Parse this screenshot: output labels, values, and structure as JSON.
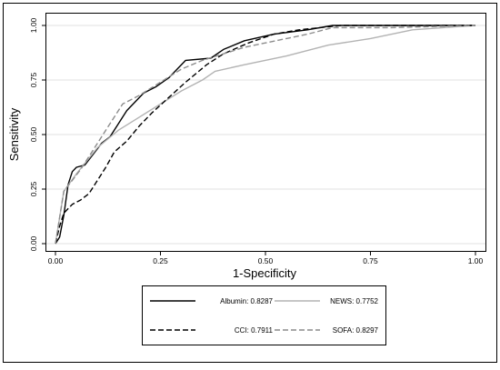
{
  "chart_data": {
    "type": "line",
    "title": "",
    "xlabel": "1-Specificity",
    "ylabel": "Sensitivity",
    "xlim": [
      0,
      1
    ],
    "ylim": [
      0,
      1
    ],
    "xticks": [
      "0.00",
      "0.25",
      "0.50",
      "0.75",
      "1.00"
    ],
    "yticks": [
      "0.00",
      "0.25",
      "0.50",
      "0.75",
      "1.00"
    ],
    "grid": "horizontal",
    "legend_position": "bottom",
    "legend": [
      {
        "label": "Albumin: 0.8287",
        "color": "#000000",
        "dash": "solid"
      },
      {
        "label": "NEWS: 0.7752",
        "color": "#b3b3b3",
        "dash": "solid"
      },
      {
        "label": "CCI: 0.7911",
        "color": "#000000",
        "dash": "dashed"
      },
      {
        "label": "SOFA: 0.8297",
        "color": "#8c8c8c",
        "dash": "dashed"
      }
    ],
    "series": [
      {
        "name": "Albumin: 0.8287",
        "x": [
          0,
          0.01,
          0.02,
          0.03,
          0.04,
          0.05,
          0.07,
          0.09,
          0.11,
          0.13,
          0.15,
          0.17,
          0.21,
          0.24,
          0.27,
          0.31,
          0.37,
          0.4,
          0.45,
          0.52,
          0.56,
          0.6,
          0.66,
          0.7,
          1.0
        ],
        "y": [
          0,
          0.03,
          0.13,
          0.27,
          0.33,
          0.35,
          0.36,
          0.41,
          0.46,
          0.49,
          0.55,
          0.61,
          0.69,
          0.72,
          0.76,
          0.84,
          0.85,
          0.89,
          0.93,
          0.96,
          0.97,
          0.98,
          1.0,
          1.0,
          1.0
        ]
      },
      {
        "name": "NEWS: 0.7752",
        "x": [
          0,
          0.01,
          0.02,
          0.05,
          0.1,
          0.15,
          0.2,
          0.25,
          0.3,
          0.35,
          0.38,
          0.45,
          0.55,
          0.65,
          0.75,
          0.85,
          1.0
        ],
        "y": [
          0,
          0.12,
          0.24,
          0.32,
          0.44,
          0.52,
          0.58,
          0.64,
          0.7,
          0.75,
          0.79,
          0.82,
          0.86,
          0.91,
          0.94,
          0.98,
          1.0
        ]
      },
      {
        "name": "CCI: 0.7911",
        "x": [
          0,
          0.01,
          0.02,
          0.04,
          0.06,
          0.08,
          0.1,
          0.12,
          0.14,
          0.17,
          0.2,
          0.23,
          0.27,
          0.31,
          0.36,
          0.4,
          0.46,
          0.52,
          0.58,
          0.63,
          0.68,
          1.0
        ],
        "y": [
          0,
          0.08,
          0.14,
          0.18,
          0.2,
          0.23,
          0.29,
          0.35,
          0.42,
          0.47,
          0.54,
          0.6,
          0.67,
          0.74,
          0.82,
          0.87,
          0.92,
          0.96,
          0.98,
          0.99,
          1.0,
          1.0
        ]
      },
      {
        "name": "SOFA: 0.8297",
        "x": [
          0,
          0.01,
          0.02,
          0.04,
          0.06,
          0.08,
          0.1,
          0.12,
          0.14,
          0.16,
          0.2,
          0.25,
          0.3,
          0.35,
          0.4,
          0.45,
          0.5,
          0.55,
          0.6,
          0.66,
          0.7,
          0.8,
          1.0
        ],
        "y": [
          0,
          0.12,
          0.24,
          0.29,
          0.34,
          0.4,
          0.46,
          0.52,
          0.58,
          0.64,
          0.68,
          0.74,
          0.8,
          0.84,
          0.87,
          0.9,
          0.92,
          0.94,
          0.96,
          0.99,
          0.99,
          0.99,
          1.0
        ]
      }
    ]
  }
}
